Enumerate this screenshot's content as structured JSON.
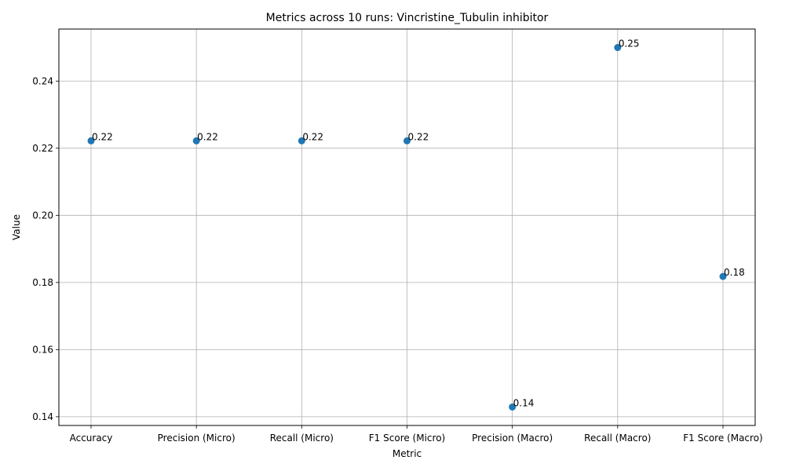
{
  "chart_data": {
    "type": "scatter",
    "title": "Metrics across 10 runs: Vincristine_Tubulin inhibitor",
    "xlabel": "Metric",
    "ylabel": "Value",
    "categories": [
      "Accuracy",
      "Precision (Micro)",
      "Recall (Micro)",
      "F1 Score (Micro)",
      "Precision (Macro)",
      "Recall (Macro)",
      "F1 Score (Macro)"
    ],
    "values": [
      0.2222,
      0.2222,
      0.2222,
      0.2222,
      0.1429,
      0.25,
      0.1818
    ],
    "data_labels": [
      "0.22",
      "0.22",
      "0.22",
      "0.22",
      "0.14",
      "0.25",
      "0.18"
    ],
    "ylim": [
      0.1374,
      0.2555
    ],
    "yticks": [
      0.14,
      0.16,
      0.18,
      0.2,
      0.22,
      0.24
    ],
    "ytick_labels": [
      "0.14",
      "0.16",
      "0.18",
      "0.20",
      "0.22",
      "0.24"
    ],
    "grid": true,
    "marker_color": "#1f77b4"
  }
}
